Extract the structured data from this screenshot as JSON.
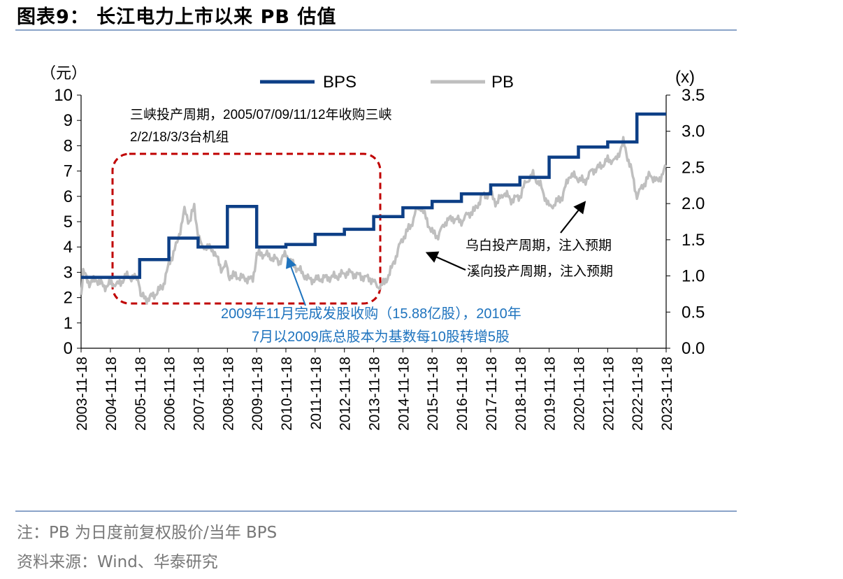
{
  "title": "图表9： 长江电力上市以来 PB 估值",
  "footnote": "注：PB 为日度前复权股价/当年 BPS",
  "source": "资料来源：Wind、华泰研究",
  "colors": {
    "bps": "#0d3f86",
    "pb": "#bfbfbf",
    "box": "#c00000",
    "arrow_blue": "#1e73be",
    "rule": "#8aa3c8"
  },
  "chart_data": {
    "type": "line",
    "left_axis_unit": "（元）",
    "right_axis_unit": "(x)",
    "ylim": [
      0,
      10
    ],
    "y2lim": [
      0,
      3.5
    ],
    "y_ticks": [
      "0",
      "1",
      "2",
      "3",
      "4",
      "5",
      "6",
      "7",
      "8",
      "9",
      "10"
    ],
    "y2_ticks": [
      "0.0",
      "0.5",
      "1.0",
      "1.5",
      "2.0",
      "2.5",
      "3.0",
      "3.5"
    ],
    "x_ticks": [
      "2003-11-18",
      "2004-11-18",
      "2005-11-18",
      "2006-11-18",
      "2007-11-18",
      "2008-11-18",
      "2009-11-18",
      "2010-11-18",
      "2011-11-18",
      "2012-11-18",
      "2013-11-18",
      "2014-11-18",
      "2015-11-18",
      "2016-11-18",
      "2017-11-18",
      "2018-11-18",
      "2019-11-18",
      "2020-11-18",
      "2021-11-18",
      "2022-11-18",
      "2023-11-18"
    ],
    "xlim": [
      "2003-11-18",
      "2023-11-18"
    ],
    "series": [
      {
        "name": "BPS",
        "axis": "left",
        "style": "step",
        "points": [
          [
            "2003-11-18",
            2.8
          ],
          [
            "2005-11-18",
            3.5
          ],
          [
            "2006-11-18",
            4.35
          ],
          [
            "2007-11-18",
            4.0
          ],
          [
            "2008-11-18",
            5.6
          ],
          [
            "2009-11-18",
            4.0
          ],
          [
            "2010-11-18",
            4.1
          ],
          [
            "2011-11-18",
            4.5
          ],
          [
            "2012-11-18",
            4.7
          ],
          [
            "2013-11-18",
            5.2
          ],
          [
            "2014-11-18",
            5.55
          ],
          [
            "2015-11-18",
            5.8
          ],
          [
            "2016-11-18",
            6.1
          ],
          [
            "2017-11-18",
            6.45
          ],
          [
            "2018-11-18",
            6.75
          ],
          [
            "2019-11-18",
            7.55
          ],
          [
            "2020-11-18",
            7.95
          ],
          [
            "2021-11-18",
            8.15
          ],
          [
            "2022-11-18",
            9.25
          ],
          [
            "2023-11-18",
            9.25
          ]
        ]
      },
      {
        "name": "PB",
        "axis": "right",
        "points": [
          [
            "2003-11-18",
            0.75
          ],
          [
            "2003-12-15",
            1.05
          ],
          [
            "2004-03-01",
            0.9
          ],
          [
            "2004-06-01",
            0.95
          ],
          [
            "2004-09-01",
            0.85
          ],
          [
            "2004-12-01",
            0.9
          ],
          [
            "2005-03-01",
            0.88
          ],
          [
            "2005-06-01",
            1.0
          ],
          [
            "2005-11-10",
            0.95
          ],
          [
            "2005-12-01",
            0.72
          ],
          [
            "2006-03-01",
            0.68
          ],
          [
            "2006-06-01",
            0.75
          ],
          [
            "2006-09-01",
            0.85
          ],
          [
            "2006-12-01",
            1.2
          ],
          [
            "2007-03-01",
            1.45
          ],
          [
            "2007-06-01",
            1.9
          ],
          [
            "2007-08-01",
            1.75
          ],
          [
            "2007-10-01",
            1.95
          ],
          [
            "2007-11-15",
            1.6
          ],
          [
            "2008-01-01",
            1.4
          ],
          [
            "2008-03-01",
            1.4
          ],
          [
            "2008-06-01",
            1.35
          ],
          [
            "2008-09-01",
            1.1
          ],
          [
            "2008-11-10",
            1.15
          ],
          [
            "2008-12-01",
            1.0
          ],
          [
            "2009-03-01",
            1.0
          ],
          [
            "2009-06-01",
            0.97
          ],
          [
            "2009-10-01",
            0.95
          ],
          [
            "2009-11-20",
            1.3
          ],
          [
            "2010-03-01",
            1.3
          ],
          [
            "2010-06-01",
            1.25
          ],
          [
            "2010-09-01",
            1.2
          ],
          [
            "2010-11-18",
            1.3
          ],
          [
            "2011-03-01",
            1.15
          ],
          [
            "2011-06-01",
            1.05
          ],
          [
            "2011-09-01",
            0.95
          ],
          [
            "2011-12-01",
            0.95
          ],
          [
            "2012-03-01",
            0.97
          ],
          [
            "2012-06-01",
            0.98
          ],
          [
            "2012-09-01",
            1.0
          ],
          [
            "2013-01-01",
            1.05
          ],
          [
            "2013-06-01",
            1.0
          ],
          [
            "2013-11-01",
            0.95
          ],
          [
            "2014-01-01",
            0.85
          ],
          [
            "2014-04-01",
            0.9
          ],
          [
            "2014-07-01",
            1.1
          ],
          [
            "2014-10-01",
            1.4
          ],
          [
            "2014-12-01",
            1.55
          ],
          [
            "2015-03-01",
            1.7
          ],
          [
            "2015-05-01",
            1.9
          ],
          [
            "2015-07-01",
            1.95
          ],
          [
            "2015-09-01",
            1.8
          ],
          [
            "2015-11-18",
            1.6
          ],
          [
            "2016-02-01",
            1.55
          ],
          [
            "2016-05-01",
            1.75
          ],
          [
            "2016-08-01",
            1.8
          ],
          [
            "2016-11-18",
            1.75
          ],
          [
            "2017-02-01",
            1.85
          ],
          [
            "2017-05-01",
            1.9
          ],
          [
            "2017-08-01",
            2.1
          ],
          [
            "2017-11-18",
            2.15
          ],
          [
            "2018-02-01",
            2.0
          ],
          [
            "2018-05-01",
            2.15
          ],
          [
            "2018-08-01",
            2.05
          ],
          [
            "2018-11-18",
            2.1
          ],
          [
            "2019-02-01",
            2.3
          ],
          [
            "2019-05-01",
            2.4
          ],
          [
            "2019-08-01",
            2.25
          ],
          [
            "2019-11-18",
            1.95
          ],
          [
            "2020-02-01",
            2.0
          ],
          [
            "2020-05-01",
            2.1
          ],
          [
            "2020-08-01",
            2.4
          ],
          [
            "2020-11-18",
            2.35
          ],
          [
            "2021-02-01",
            2.3
          ],
          [
            "2021-05-01",
            2.45
          ],
          [
            "2021-08-01",
            2.5
          ],
          [
            "2021-11-18",
            2.6
          ],
          [
            "2022-03-01",
            2.6
          ],
          [
            "2022-06-01",
            2.85
          ],
          [
            "2022-09-01",
            2.5
          ],
          [
            "2022-11-18",
            2.1
          ],
          [
            "2023-02-01",
            2.25
          ],
          [
            "2023-05-01",
            2.4
          ],
          [
            "2023-08-01",
            2.3
          ],
          [
            "2023-11-18",
            2.5
          ]
        ]
      }
    ],
    "annotations": {
      "box_note": [
        "三峡投产周期，2005/07/09/11/12年收购三峡",
        "2/2/18/3/3台机组"
      ],
      "blue_note": [
        "2009年11月完成发股收购（15.88亿股），2010年",
        "7月以2009底总股本为基数每10股转增5股"
      ],
      "wudongde": "乌白投产周期，注入预期",
      "xiluodu": "溪向投产周期，注入预期"
    }
  }
}
